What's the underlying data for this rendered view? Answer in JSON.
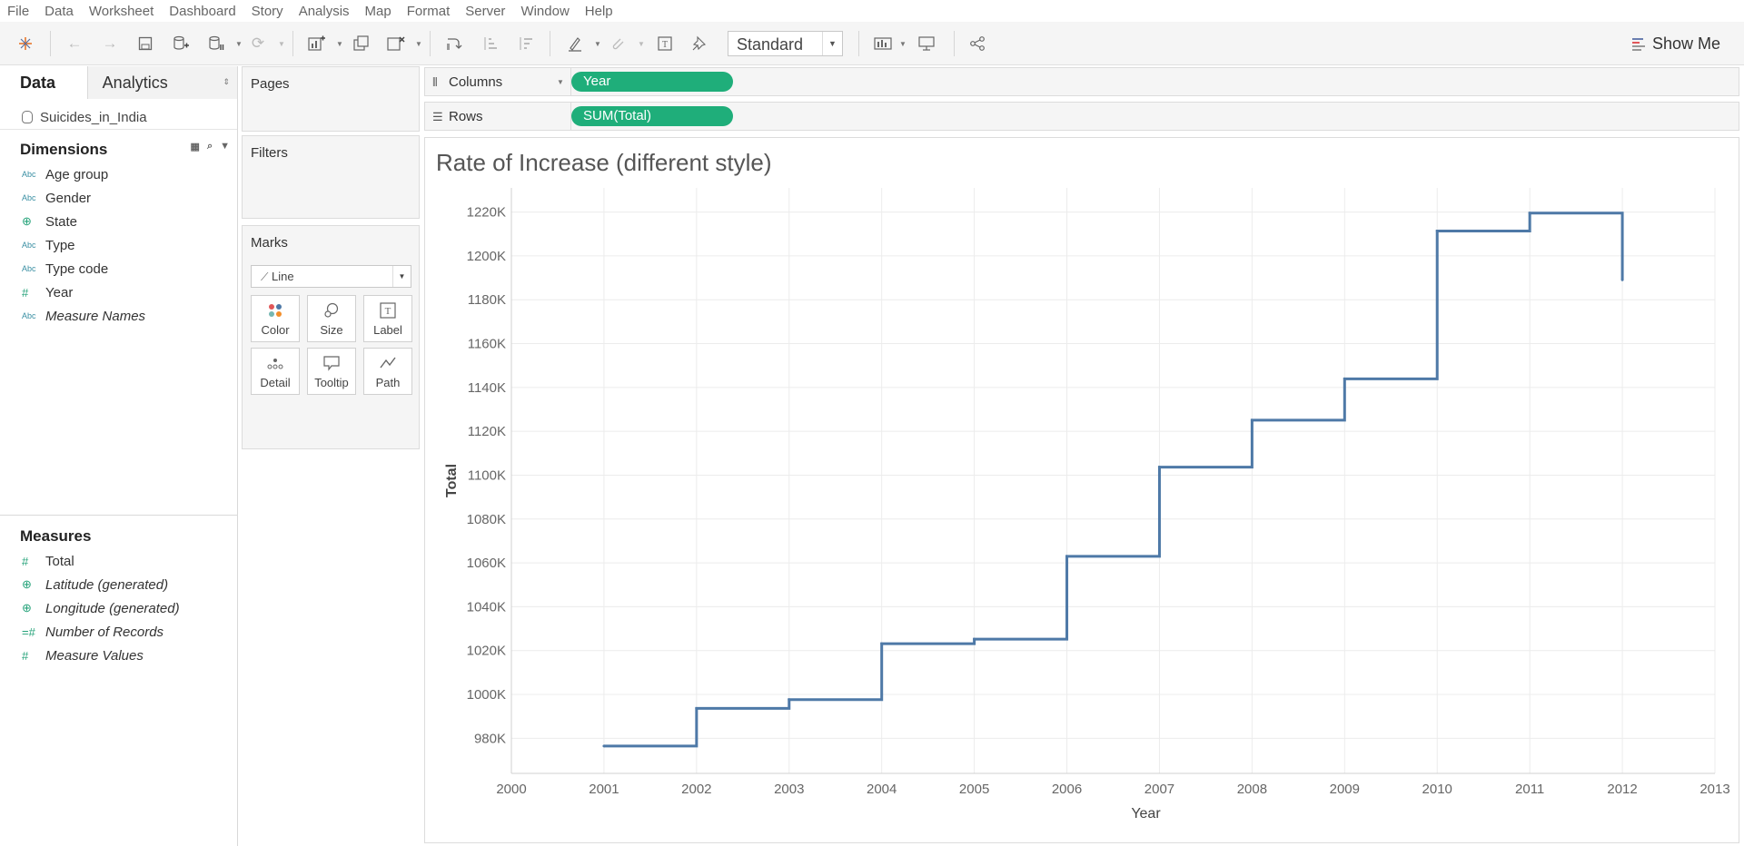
{
  "menu": [
    "File",
    "Data",
    "Worksheet",
    "Dashboard",
    "Story",
    "Analysis",
    "Map",
    "Format",
    "Server",
    "Window",
    "Help"
  ],
  "toolbar": {
    "view_mode": "Standard",
    "show_me_label": "Show Me",
    "icons": [
      "tableau-logo-icon",
      "undo-icon",
      "redo-icon",
      "save-icon",
      "new-datasource-icon",
      "pause-updates-icon",
      "refresh-icon",
      "new-worksheet-icon",
      "duplicate-icon",
      "clear-sheet-icon",
      "swap-icon",
      "sort-ascending-icon",
      "sort-descending-icon",
      "highlight-icon",
      "group-icon",
      "label-icon",
      "pin-icon",
      "fit-icon",
      "presentation-icon",
      "share-icon"
    ]
  },
  "data_pane": {
    "tab_data": "Data",
    "tab_analytics": "Analytics",
    "datasource": "Suicides_in_India",
    "dimensions_header": "Dimensions",
    "dimensions": [
      {
        "type": "Abc",
        "name": "Age group",
        "italic": false
      },
      {
        "type": "Abc",
        "name": "Gender",
        "italic": false
      },
      {
        "type": "globe",
        "name": "State",
        "italic": false
      },
      {
        "type": "Abc",
        "name": "Type",
        "italic": false
      },
      {
        "type": "Abc",
        "name": "Type code",
        "italic": false
      },
      {
        "type": "#",
        "name": "Year",
        "italic": false
      },
      {
        "type": "Abc",
        "name": "Measure Names",
        "italic": true
      }
    ],
    "measures_header": "Measures",
    "measures": [
      {
        "type": "#",
        "name": "Total",
        "italic": false
      },
      {
        "type": "globe",
        "name": "Latitude (generated)",
        "italic": true
      },
      {
        "type": "globe",
        "name": "Longitude (generated)",
        "italic": true
      },
      {
        "type": "=#",
        "name": "Number of Records",
        "italic": true
      },
      {
        "type": "#",
        "name": "Measure Values",
        "italic": true
      }
    ]
  },
  "cards": {
    "pages": "Pages",
    "filters": "Filters",
    "marks": "Marks",
    "mark_type": "Line",
    "mark_buttons": [
      "Color",
      "Size",
      "Label",
      "Detail",
      "Tooltip",
      "Path"
    ]
  },
  "shelves": {
    "columns_label": "Columns",
    "columns_pill": "Year",
    "rows_label": "Rows",
    "rows_pill": "SUM(Total)",
    "pill_color": "#1fae7a"
  },
  "chart_data": {
    "type": "line",
    "line_style": "step",
    "title": "Rate of Increase (different style)",
    "xlabel": "Year",
    "ylabel": "Total",
    "x": [
      2001,
      2002,
      2003,
      2004,
      2005,
      2006,
      2007,
      2008,
      2009,
      2010,
      2011,
      2012
    ],
    "values": [
      976464,
      993648,
      997622,
      1023137,
      1025201,
      1062991,
      1103667,
      1125082,
      1143896,
      1211322,
      1219499,
      1189068
    ],
    "x_ticks": [
      2000,
      2001,
      2002,
      2003,
      2004,
      2005,
      2006,
      2007,
      2008,
      2009,
      2010,
      2011,
      2012,
      2013
    ],
    "y_ticks": [
      "980K",
      "1000K",
      "1020K",
      "1040K",
      "1060K",
      "1080K",
      "1100K",
      "1120K",
      "1140K",
      "1160K",
      "1180K",
      "1200K",
      "1220K"
    ],
    "y_tick_values": [
      980000,
      1000000,
      1020000,
      1040000,
      1060000,
      1080000,
      1100000,
      1120000,
      1140000,
      1160000,
      1180000,
      1200000,
      1220000
    ],
    "xlim": [
      2000,
      2013
    ],
    "ylim": [
      964000,
      1231000
    ],
    "grid": true,
    "line_color": "#4e79a7"
  }
}
